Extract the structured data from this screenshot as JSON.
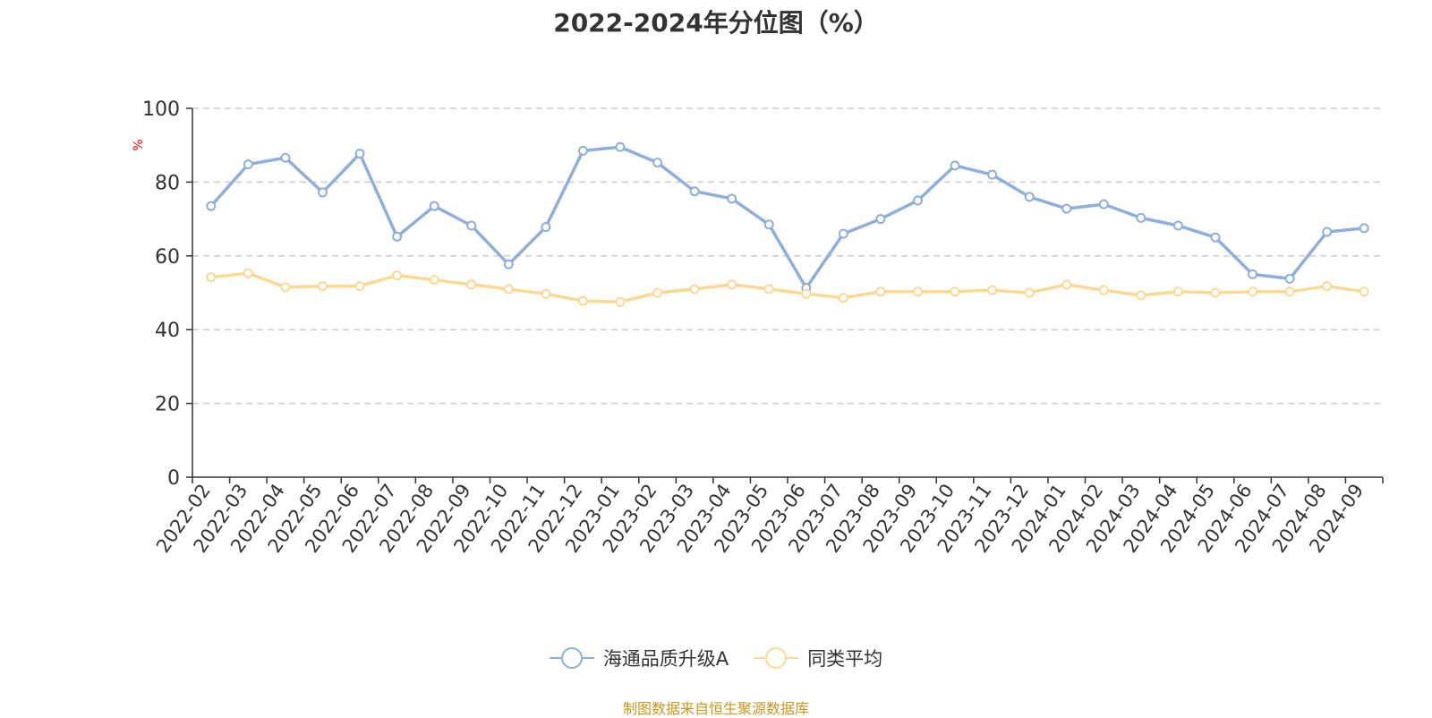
{
  "title": "2022-2024年分位图（%）",
  "source_text": "制图数据来自恒生聚源数据库",
  "colors": {
    "series_1": "#8eaedb",
    "series_2": "#fcd993",
    "axis": "#333333",
    "grid": "#cccccc",
    "unit_label": "#ff0000",
    "source": "#c8961e"
  },
  "chart_data": {
    "type": "line",
    "ylabel": "%",
    "ylim": [
      0,
      100
    ],
    "yticks": [
      0,
      20,
      40,
      60,
      80,
      100
    ],
    "grid": "horizontal dashed",
    "legend_position": "bottom-center",
    "x": [
      "2022-02",
      "2022-03",
      "2022-04",
      "2022-05",
      "2022-06",
      "2022-07",
      "2022-08",
      "2022-09",
      "2022-10",
      "2022-11",
      "2022-12",
      "2023-01",
      "2023-02",
      "2023-03",
      "2023-04",
      "2023-05",
      "2023-06",
      "2023-07",
      "2023-08",
      "2023-09",
      "2023-10",
      "2023-11",
      "2023-12",
      "2024-01",
      "2024-02",
      "2024-03",
      "2024-04",
      "2024-05",
      "2024-06",
      "2024-07",
      "2024-08",
      "2024-09"
    ],
    "series": [
      {
        "name": "海通品质升级A",
        "color": "#8eaedb",
        "values": [
          73.5,
          84.8,
          86.6,
          77.2,
          87.7,
          65.2,
          73.5,
          68.2,
          57.7,
          67.8,
          88.5,
          89.5,
          85.3,
          77.5,
          75.5,
          68.5,
          51.3,
          66.0,
          70.0,
          75.0,
          84.5,
          82.0,
          76.0,
          72.8,
          74.0,
          70.3,
          68.2,
          65.0,
          55.0,
          53.8,
          66.5,
          67.5
        ]
      },
      {
        "name": "同类平均",
        "color": "#fcd993",
        "values": [
          54.2,
          55.3,
          51.5,
          51.8,
          51.8,
          54.7,
          53.5,
          52.2,
          51.0,
          49.7,
          47.8,
          47.5,
          50.0,
          51.0,
          52.2,
          51.0,
          49.7,
          48.6,
          50.3,
          50.3,
          50.3,
          50.7,
          50.0,
          52.2,
          50.7,
          49.3,
          50.3,
          50.0,
          50.3,
          50.3,
          51.8,
          50.3
        ]
      }
    ]
  }
}
